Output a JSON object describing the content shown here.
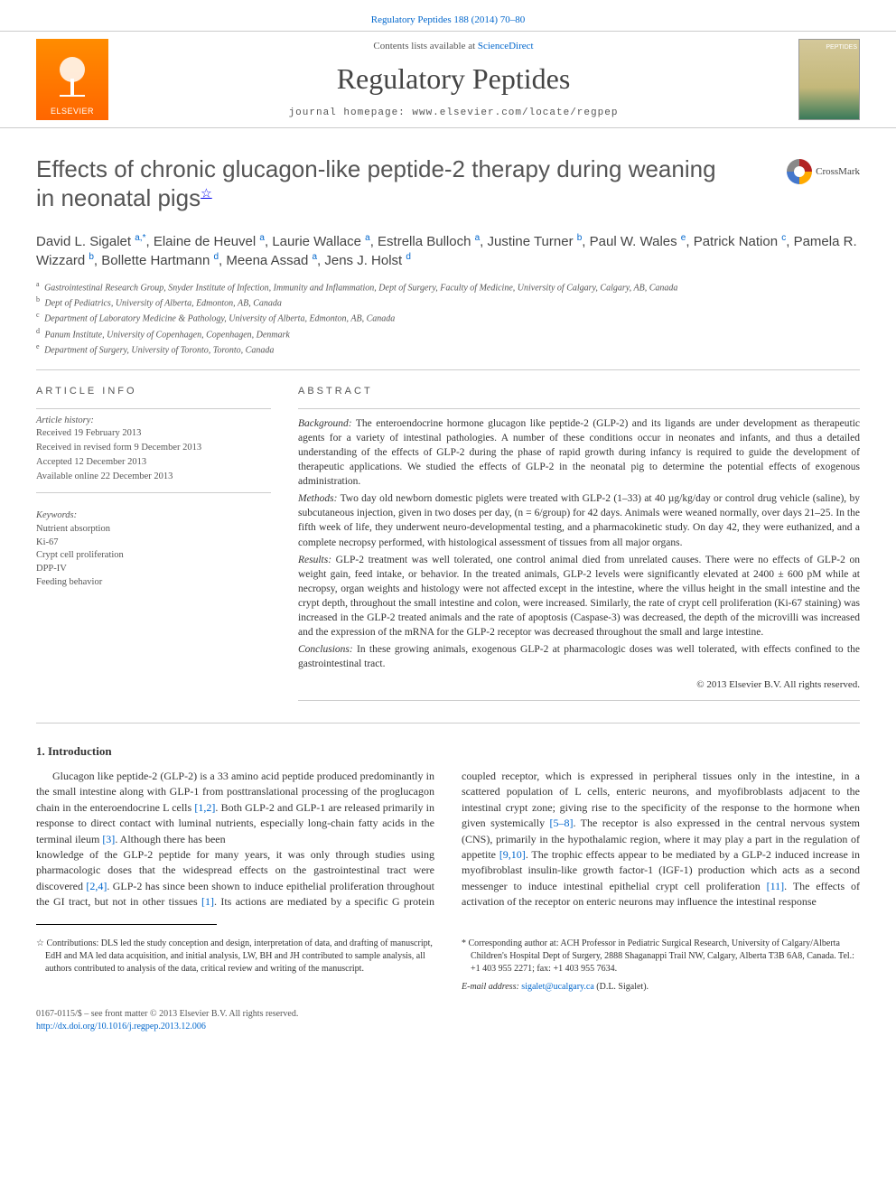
{
  "topLink": {
    "text": "Regulatory Peptides 188 (2014) 70–80",
    "href": "#"
  },
  "masthead": {
    "publisher": "ELSEVIER",
    "contentsPrefix": "Contents lists available at ",
    "contentsLink": "ScienceDirect",
    "journalName": "Regulatory Peptides",
    "homepage": "journal homepage: www.elsevier.com/locate/regpep",
    "coverLabel": "PEPTIDES"
  },
  "article": {
    "title": "Effects of chronic glucagon-like peptide-2 therapy during weaning in neonatal pigs",
    "titleNote": "☆",
    "crossmark": "CrossMark"
  },
  "authors": [
    {
      "name": "David L. Sigalet",
      "sup": "a,",
      "link": "*"
    },
    {
      "name": "Elaine de Heuvel",
      "sup": "a"
    },
    {
      "name": "Laurie Wallace",
      "sup": "a"
    },
    {
      "name": "Estrella Bulloch",
      "sup": "a"
    },
    {
      "name": "Justine Turner",
      "sup": "b"
    },
    {
      "name": "Paul W. Wales",
      "sup": "e"
    },
    {
      "name": "Patrick Nation",
      "sup": "c"
    },
    {
      "name": "Pamela R. Wizzard",
      "sup": "b"
    },
    {
      "name": "Bollette Hartmann",
      "sup": "d"
    },
    {
      "name": "Meena Assad",
      "sup": "a"
    },
    {
      "name": "Jens J. Holst",
      "sup": "d"
    }
  ],
  "affiliations": [
    {
      "sup": "a",
      "text": "Gastrointestinal Research Group, Snyder Institute of Infection, Immunity and Inflammation, Dept of Surgery, Faculty of Medicine, University of Calgary, Calgary, AB, Canada"
    },
    {
      "sup": "b",
      "text": "Dept of Pediatrics, University of Alberta, Edmonton, AB, Canada"
    },
    {
      "sup": "c",
      "text": "Department of Laboratory Medicine & Pathology, University of Alberta, Edmonton, AB, Canada"
    },
    {
      "sup": "d",
      "text": "Panum Institute, University of Copenhagen, Copenhagen, Denmark"
    },
    {
      "sup": "e",
      "text": "Department of Surgery, University of Toronto, Toronto, Canada"
    }
  ],
  "info": {
    "label": "ARTICLE INFO",
    "historyLabel": "Article history:",
    "history": [
      "Received 19 February 2013",
      "Received in revised form 9 December 2013",
      "Accepted 12 December 2013",
      "Available online 22 December 2013"
    ],
    "keywordsLabel": "Keywords:",
    "keywords": [
      "Nutrient absorption",
      "Ki-67",
      "Crypt cell proliferation",
      "DPP-IV",
      "Feeding behavior"
    ]
  },
  "abstract": {
    "label": "ABSTRACT",
    "paras": [
      {
        "lead": "Background:",
        "text": " The enteroendocrine hormone glucagon like peptide-2 (GLP-2) and its ligands are under development as therapeutic agents for a variety of intestinal pathologies. A number of these conditions occur in neonates and infants, and thus a detailed understanding of the effects of GLP-2 during the phase of rapid growth during infancy is required to guide the development of therapeutic applications. We studied the effects of GLP-2 in the neonatal pig to determine the potential effects of exogenous administration."
      },
      {
        "lead": "Methods:",
        "text": " Two day old newborn domestic piglets were treated with GLP-2 (1–33) at 40 µg/kg/day or control drug vehicle (saline), by subcutaneous injection, given in two doses per day, (n = 6/group) for 42 days. Animals were weaned normally, over days 21–25. In the fifth week of life, they underwent neuro-developmental testing, and a pharmacokinetic study. On day 42, they were euthanized, and a complete necropsy performed, with histological assessment of tissues from all major organs."
      },
      {
        "lead": "Results:",
        "text": " GLP-2 treatment was well tolerated, one control animal died from unrelated causes. There were no effects of GLP-2 on weight gain, feed intake, or behavior. In the treated animals, GLP-2 levels were significantly elevated at 2400 ± 600 pM while at necropsy, organ weights and histology were not affected except in the intestine, where the villus height in the small intestine and the crypt depth, throughout the small intestine and colon, were increased. Similarly, the rate of crypt cell proliferation (Ki-67 staining) was increased in the GLP-2 treated animals and the rate of apoptosis (Caspase-3) was decreased, the depth of the microvilli was increased and the expression of the mRNA for the GLP-2 receptor was decreased throughout the small and large intestine."
      },
      {
        "lead": "Conclusions:",
        "text": " In these growing animals, exogenous GLP-2 at pharmacologic doses was well tolerated, with effects confined to the gastrointestinal tract."
      }
    ],
    "copyright": "© 2013 Elsevier B.V. All rights reserved."
  },
  "intro": {
    "heading": "1. Introduction",
    "col1": "Glucagon like peptide-2 (GLP-2) is a 33 amino acid peptide produced predominantly in the small intestine along with GLP-1 from posttranslational processing of the proglucagon chain in the enteroendocrine L cells [1,2]. Both GLP-2 and GLP-1 are released primarily in response to direct contact with luminal nutrients, especially long-chain fatty acids in the terminal ileum [3]. Although there has been",
    "col2": "knowledge of the GLP-2 peptide for many years, it was only through studies using pharmacologic doses that the widespread effects on the gastrointestinal tract were discovered [2,4]. GLP-2 has since been shown to induce epithelial proliferation throughout the GI tract, but not in other tissues [1]. Its actions are mediated by a specific G protein coupled receptor, which is expressed in peripheral tissues only in the intestine, in a scattered population of L cells, enteric neurons, and myofibroblasts adjacent to the intestinal crypt zone; giving rise to the specificity of the response to the hormone when given systemically [5–8]. The receptor is also expressed in the central nervous system (CNS), primarily in the hypothalamic region, where it may play a part in the regulation of appetite [9,10]. The trophic effects appear to be mediated by a GLP-2 induced increase in myofibroblast insulin-like growth factor-1 (IGF-1) production which acts as a second messenger to induce intestinal epithelial crypt cell proliferation [11]. The effects of activation of the receptor on enteric neurons may influence the intestinal response",
    "refs": [
      "[1,2]",
      "[3]",
      "[2,4]",
      "[1]",
      "[5–8]",
      "[9,10]",
      "[11]"
    ]
  },
  "footnotes": {
    "contrib": "☆  Contributions: DLS led the study conception and design, interpretation of data, and drafting of manuscript, EdH and MA led data acquisition, and initial analysis, LW, BH and JH contributed to sample analysis, all authors contributed to analysis of the data, critical review and writing of the manuscript.",
    "corresp": "*  Corresponding author at: ACH Professor in Pediatric Surgical Research, University of Calgary/Alberta Children's Hospital Dept of Surgery, 2888 Shaganappi Trail NW, Calgary, Alberta T3B 6A8, Canada. Tel.: +1 403 955 2271; fax: +1 403 955 7634.",
    "emailLabel": "E-mail address: ",
    "email": "sigalet@ucalgary.ca",
    "emailSuffix": " (D.L. Sigalet)."
  },
  "bottom": {
    "issn": "0167-0115/$ – see front matter © 2013 Elsevier B.V. All rights reserved.",
    "doi": "http://dx.doi.org/10.1016/j.regpep.2013.12.006"
  },
  "colors": {
    "link": "#0066cc",
    "text": "#333333",
    "muted": "#555555",
    "rule": "#cccccc",
    "elsevierOrange": "#ff6600"
  }
}
